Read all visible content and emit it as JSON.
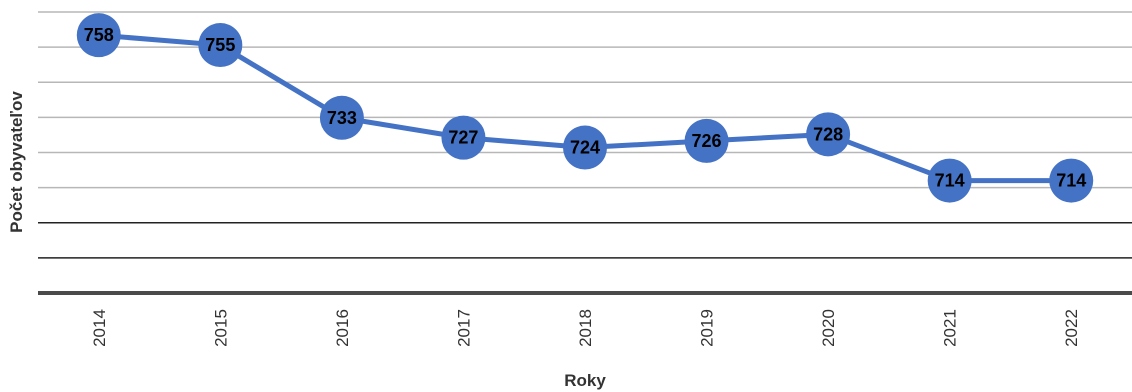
{
  "chart_data": {
    "type": "line",
    "categories": [
      "2014",
      "2015",
      "2016",
      "2017",
      "2018",
      "2019",
      "2020",
      "2021",
      "2022"
    ],
    "series": [
      {
        "values": [
          758,
          755,
          733,
          727,
          724,
          726,
          728,
          714,
          714
        ],
        "color": "#4472c4"
      }
    ],
    "xlabel": "Roky",
    "ylabel": "Počet obyvateľov",
    "ylim": [
      680,
      765
    ],
    "grid": true,
    "data_labels": true,
    "show_y_tick_labels": false
  }
}
